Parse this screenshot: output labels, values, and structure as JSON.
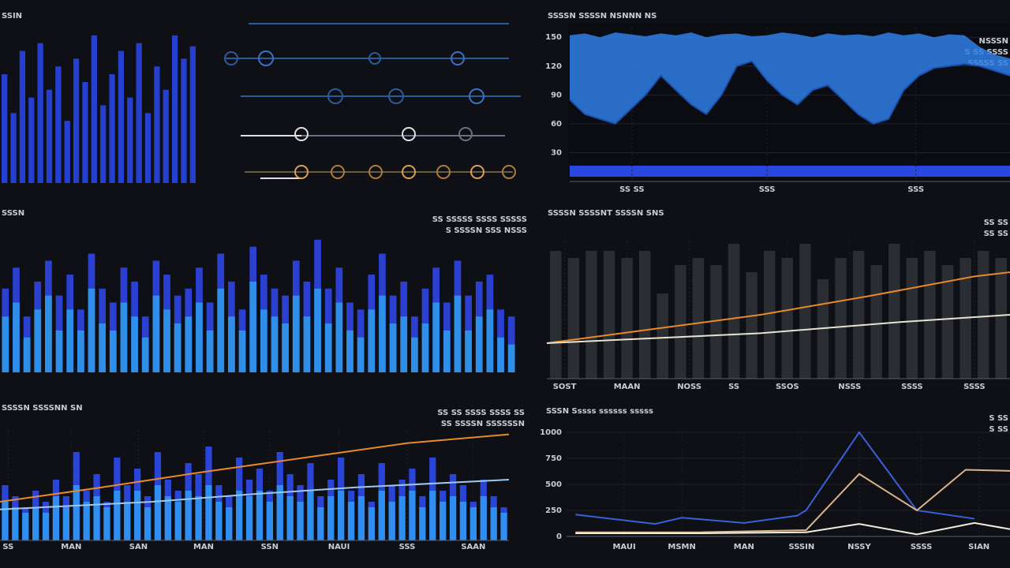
{
  "chart_data": [
    {
      "type": "bar",
      "title": "SSIN",
      "series": [
        {
          "color": "#2540d0",
          "values": [
            70,
            45,
            85,
            55,
            90,
            60,
            75,
            40,
            80,
            65,
            95,
            50,
            70,
            85,
            55,
            90,
            45,
            75,
            60,
            95,
            80,
            88
          ]
        }
      ],
      "ylim": [
        0,
        100
      ]
    },
    {
      "type": "area",
      "title": "SSSSN SSSSN NSNNN NS",
      "series": [
        {
          "color": "#2f7fe8",
          "values": [
            152,
            154,
            150,
            155,
            153,
            151,
            154,
            152,
            155,
            150,
            153,
            154,
            151,
            152,
            155,
            153,
            150,
            154,
            152,
            153,
            151,
            155,
            152,
            154,
            150,
            153,
            152,
            140,
            132,
            128
          ]
        },
        {
          "color": "#1b4fb0",
          "values": [
            85,
            70,
            65,
            60,
            75,
            90,
            110,
            95,
            80,
            70,
            90,
            120,
            125,
            105,
            90,
            80,
            95,
            100,
            85,
            70,
            60,
            65,
            95,
            110,
            118,
            120,
            122,
            120,
            115,
            110
          ]
        }
      ],
      "ylim": [
        0,
        160
      ],
      "yticks": [
        150,
        120,
        90,
        60,
        30
      ],
      "xlim": [
        0,
        29
      ],
      "xticks": [
        {
          "value": 4.1,
          "label": "SS SS"
        },
        {
          "value": 13,
          "label": "SSS"
        },
        {
          "value": 22.8,
          "label": "SSS"
        }
      ],
      "notes": [
        "NSSSN",
        "S SS SSSS",
        "SSSSS SS"
      ]
    },
    {
      "type": "bar",
      "title": "SSSN",
      "series": [
        {
          "color": "#2b3fd0",
          "values": [
            60,
            75,
            40,
            65,
            80,
            55,
            70,
            45,
            85,
            60,
            50,
            75,
            65,
            40,
            80,
            70,
            55,
            60,
            75,
            50,
            85,
            65,
            45,
            90,
            70,
            60,
            55,
            80,
            65,
            95,
            60,
            75,
            50,
            45,
            70,
            85,
            55,
            65,
            40,
            60,
            75,
            50,
            80,
            55,
            65,
            70,
            45,
            40
          ]
        },
        {
          "color": "#2e8ee8",
          "values": [
            40,
            50,
            25,
            45,
            55,
            30,
            45,
            30,
            60,
            35,
            30,
            50,
            40,
            25,
            55,
            45,
            35,
            40,
            50,
            30,
            60,
            40,
            30,
            65,
            45,
            40,
            35,
            55,
            40,
            60,
            35,
            50,
            30,
            25,
            45,
            55,
            35,
            40,
            25,
            35,
            50,
            30,
            55,
            30,
            40,
            45,
            25,
            20
          ]
        }
      ],
      "ylim": [
        0,
        100
      ],
      "notes": [
        "SS SSSSS SSSS SSSSS",
        "S SSSSN SSS NSSS"
      ]
    },
    {
      "type": "combo",
      "title": "SSSSN SSSSNT SSSSN SNS",
      "series": [
        {
          "color": "#2a2e33",
          "values": [
            90,
            85,
            90,
            90,
            85,
            90,
            60,
            80,
            85,
            80,
            95,
            75,
            90,
            85,
            95,
            70,
            85,
            90,
            80,
            95,
            85,
            90,
            80,
            85,
            90,
            85
          ]
        },
        {
          "color": "#e8892a",
          "x": [
            0,
            6,
            12,
            18,
            24,
            26
          ],
          "values": [
            25,
            35,
            45,
            58,
            72,
            75
          ]
        },
        {
          "color": "#e8e2d0",
          "x": [
            0,
            12,
            20,
            26
          ],
          "values": [
            25,
            32,
            40,
            45
          ]
        }
      ],
      "ylim": [
        0,
        100
      ],
      "xlim": [
        0,
        26
      ],
      "xticks": [
        {
          "value": 1,
          "label": "SOST"
        },
        {
          "value": 4.5,
          "label": "MAAN"
        },
        {
          "value": 8,
          "label": "NOSS"
        },
        {
          "value": 10.5,
          "label": "SS"
        },
        {
          "value": 13.5,
          "label": "SSOS"
        },
        {
          "value": 17,
          "label": "NSSS"
        },
        {
          "value": 20.5,
          "label": "SSSS"
        },
        {
          "value": 24,
          "label": "SSSS"
        }
      ],
      "notes": [
        "SS SS",
        "SS SS"
      ]
    },
    {
      "type": "combo",
      "title": "SSSSN SSSSNN SN",
      "series": [
        {
          "color": "#2b44d8",
          "values": [
            50,
            40,
            30,
            45,
            35,
            55,
            40,
            80,
            45,
            60,
            35,
            75,
            50,
            65,
            40,
            80,
            55,
            45,
            70,
            60,
            85,
            50,
            40,
            75,
            55,
            65,
            45,
            80,
            60,
            50,
            70,
            40,
            55,
            75,
            45,
            60,
            35,
            70,
            50,
            55,
            65,
            40,
            75,
            45,
            60,
            50,
            35,
            55,
            40,
            30
          ]
        },
        {
          "color": "#2f8ef0",
          "values": [
            35,
            30,
            25,
            30,
            25,
            40,
            30,
            50,
            35,
            40,
            30,
            45,
            35,
            45,
            30,
            50,
            40,
            35,
            45,
            40,
            50,
            35,
            30,
            45,
            40,
            45,
            35,
            50,
            40,
            35,
            45,
            30,
            40,
            45,
            35,
            40,
            30,
            45,
            35,
            40,
            45,
            30,
            45,
            35,
            40,
            35,
            30,
            40,
            30,
            25
          ]
        },
        {
          "color": "#e8892a",
          "x": [
            0,
            10,
            20,
            30,
            40,
            50
          ],
          "values": [
            35,
            48,
            62,
            75,
            88,
            96
          ]
        },
        {
          "color": "#9fc7f0",
          "x": [
            0,
            15,
            25,
            35,
            50
          ],
          "values": [
            28,
            35,
            42,
            48,
            55
          ]
        }
      ],
      "ylim": [
        0,
        100
      ],
      "xlim": [
        0,
        50
      ],
      "xticks": [
        {
          "value": 0.8,
          "label": "SS"
        },
        {
          "value": 7,
          "label": "MAN"
        },
        {
          "value": 13.6,
          "label": "SAN"
        },
        {
          "value": 20,
          "label": "MAN"
        },
        {
          "value": 26.5,
          "label": "SSN"
        },
        {
          "value": 33.3,
          "label": "NAUI"
        },
        {
          "value": 40,
          "label": "SSS"
        },
        {
          "value": 46.5,
          "label": "SAAN"
        }
      ],
      "notes": [
        "SS SS SSSS SSSS SS",
        "SS SSSSN SSSSSSN"
      ]
    },
    {
      "type": "line",
      "title": "SSSN Sssss ssssss sssss",
      "series": [
        {
          "color": "#3a5fd8",
          "x": [
            0.2,
            2,
            2.6,
            4,
            5.2,
            5.4,
            6.6,
            7.9,
            9.2
          ],
          "values": [
            210,
            120,
            180,
            130,
            200,
            250,
            1000,
            250,
            170
          ]
        },
        {
          "color": "#d9b48a",
          "x": [
            0.2,
            3,
            5.4,
            6.6,
            7.9,
            9,
            10
          ],
          "values": [
            40,
            40,
            60,
            600,
            250,
            640,
            630
          ]
        },
        {
          "color": "#f0ece0",
          "x": [
            0.2,
            3,
            5.4,
            6.6,
            7.9,
            9.2,
            10
          ],
          "values": [
            30,
            30,
            40,
            120,
            20,
            130,
            70
          ]
        }
      ],
      "ylim": [
        0,
        1000
      ],
      "yticks": [
        1000,
        750,
        500,
        250,
        0
      ],
      "xlim": [
        0,
        10
      ],
      "xticks": [
        {
          "value": 1.3,
          "label": "MAUI"
        },
        {
          "value": 2.6,
          "label": "MSMN"
        },
        {
          "value": 4,
          "label": "MAN"
        },
        {
          "value": 5.3,
          "label": "SSSIN"
        },
        {
          "value": 6.6,
          "label": "NSSY"
        },
        {
          "value": 8,
          "label": "SSSS"
        },
        {
          "value": 9.3,
          "label": "SIAN"
        }
      ],
      "notes": [
        "S SS",
        "S SS"
      ]
    }
  ]
}
